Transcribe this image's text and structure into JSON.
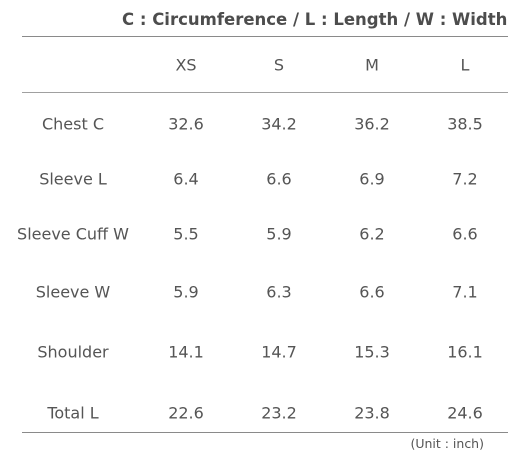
{
  "legend": "C : Circumference / L : Length / W : Width",
  "table": {
    "corner": "",
    "columns": [
      "XS",
      "S",
      "M",
      "L"
    ],
    "rows": [
      {
        "label": "Chest C",
        "values": [
          "32.6",
          "34.2",
          "36.2",
          "38.5"
        ]
      },
      {
        "label": "Sleeve L",
        "values": [
          "6.4",
          "6.6",
          "6.9",
          "7.2"
        ]
      },
      {
        "label": "Sleeve Cuff W",
        "values": [
          "5.5",
          "5.9",
          "6.2",
          "6.6"
        ]
      },
      {
        "label": "Sleeve W",
        "values": [
          "5.9",
          "6.3",
          "6.6",
          "7.1"
        ]
      },
      {
        "label": "Shoulder",
        "values": [
          "14.1",
          "14.7",
          "15.3",
          "16.1"
        ]
      },
      {
        "label": "Total L",
        "values": [
          "22.6",
          "23.2",
          "23.8",
          "24.6"
        ]
      }
    ]
  },
  "unit_note": "(Unit : inch)"
}
